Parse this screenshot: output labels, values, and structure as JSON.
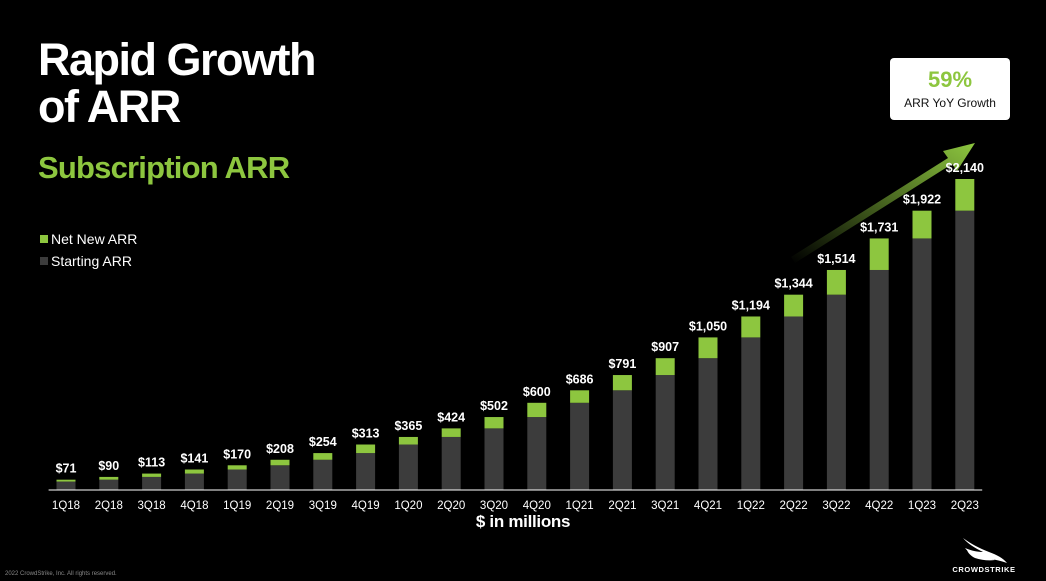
{
  "page": {
    "title": "Rapid Growth\nof ARR",
    "subtitle": "Subscription ARR",
    "footnote": "2022 CrowdStrike, Inc. All rights reserved.",
    "logo_text": "CROWDSTRIKE"
  },
  "legend": {
    "items": [
      {
        "label": "Net New ARR",
        "color": "#8dc63f"
      },
      {
        "label": "Starting ARR",
        "color": "#3c3c3c"
      }
    ]
  },
  "callout": {
    "value": "59%",
    "label": "ARR YoY Growth"
  },
  "chart_data": {
    "type": "bar",
    "stacked": true,
    "categories": [
      "1Q18",
      "2Q18",
      "3Q18",
      "4Q18",
      "1Q19",
      "2Q19",
      "3Q19",
      "4Q19",
      "1Q20",
      "2Q20",
      "3Q20",
      "4Q20",
      "1Q21",
      "2Q21",
      "3Q21",
      "4Q21",
      "1Q22",
      "2Q22",
      "3Q22",
      "4Q22",
      "1Q23",
      "2Q23"
    ],
    "totals": [
      71,
      90,
      113,
      141,
      170,
      208,
      254,
      313,
      365,
      424,
      502,
      600,
      686,
      791,
      907,
      1050,
      1194,
      1344,
      1514,
      1731,
      1922,
      2140
    ],
    "data_labels": [
      "$71",
      "$90",
      "$113",
      "$141",
      "$170",
      "$208",
      "$254",
      "$313",
      "$365",
      "$424",
      "$502",
      "$600",
      "$686",
      "$791",
      "$907",
      "$1,050",
      "$1,194",
      "$1,344",
      "$1,514",
      "$1,731",
      "$1,922",
      "$2,140"
    ],
    "series": [
      {
        "name": "Starting ARR",
        "color": "#3c3c3c",
        "values": [
          58,
          71,
          90,
          113,
          141,
          170,
          208,
          254,
          313,
          365,
          424,
          502,
          600,
          686,
          791,
          907,
          1050,
          1194,
          1344,
          1514,
          1731,
          1922
        ]
      },
      {
        "name": "Net New ARR",
        "color": "#8dc63f",
        "values": [
          13,
          19,
          23,
          28,
          29,
          38,
          46,
          59,
          52,
          59,
          78,
          98,
          86,
          105,
          116,
          143,
          144,
          150,
          170,
          217,
          191,
          218
        ]
      }
    ],
    "xlabel": "$ in millions",
    "ylim": [
      0,
      2140
    ],
    "grid": false,
    "legend_position": "left",
    "annotation": "59% ARR YoY Growth"
  }
}
